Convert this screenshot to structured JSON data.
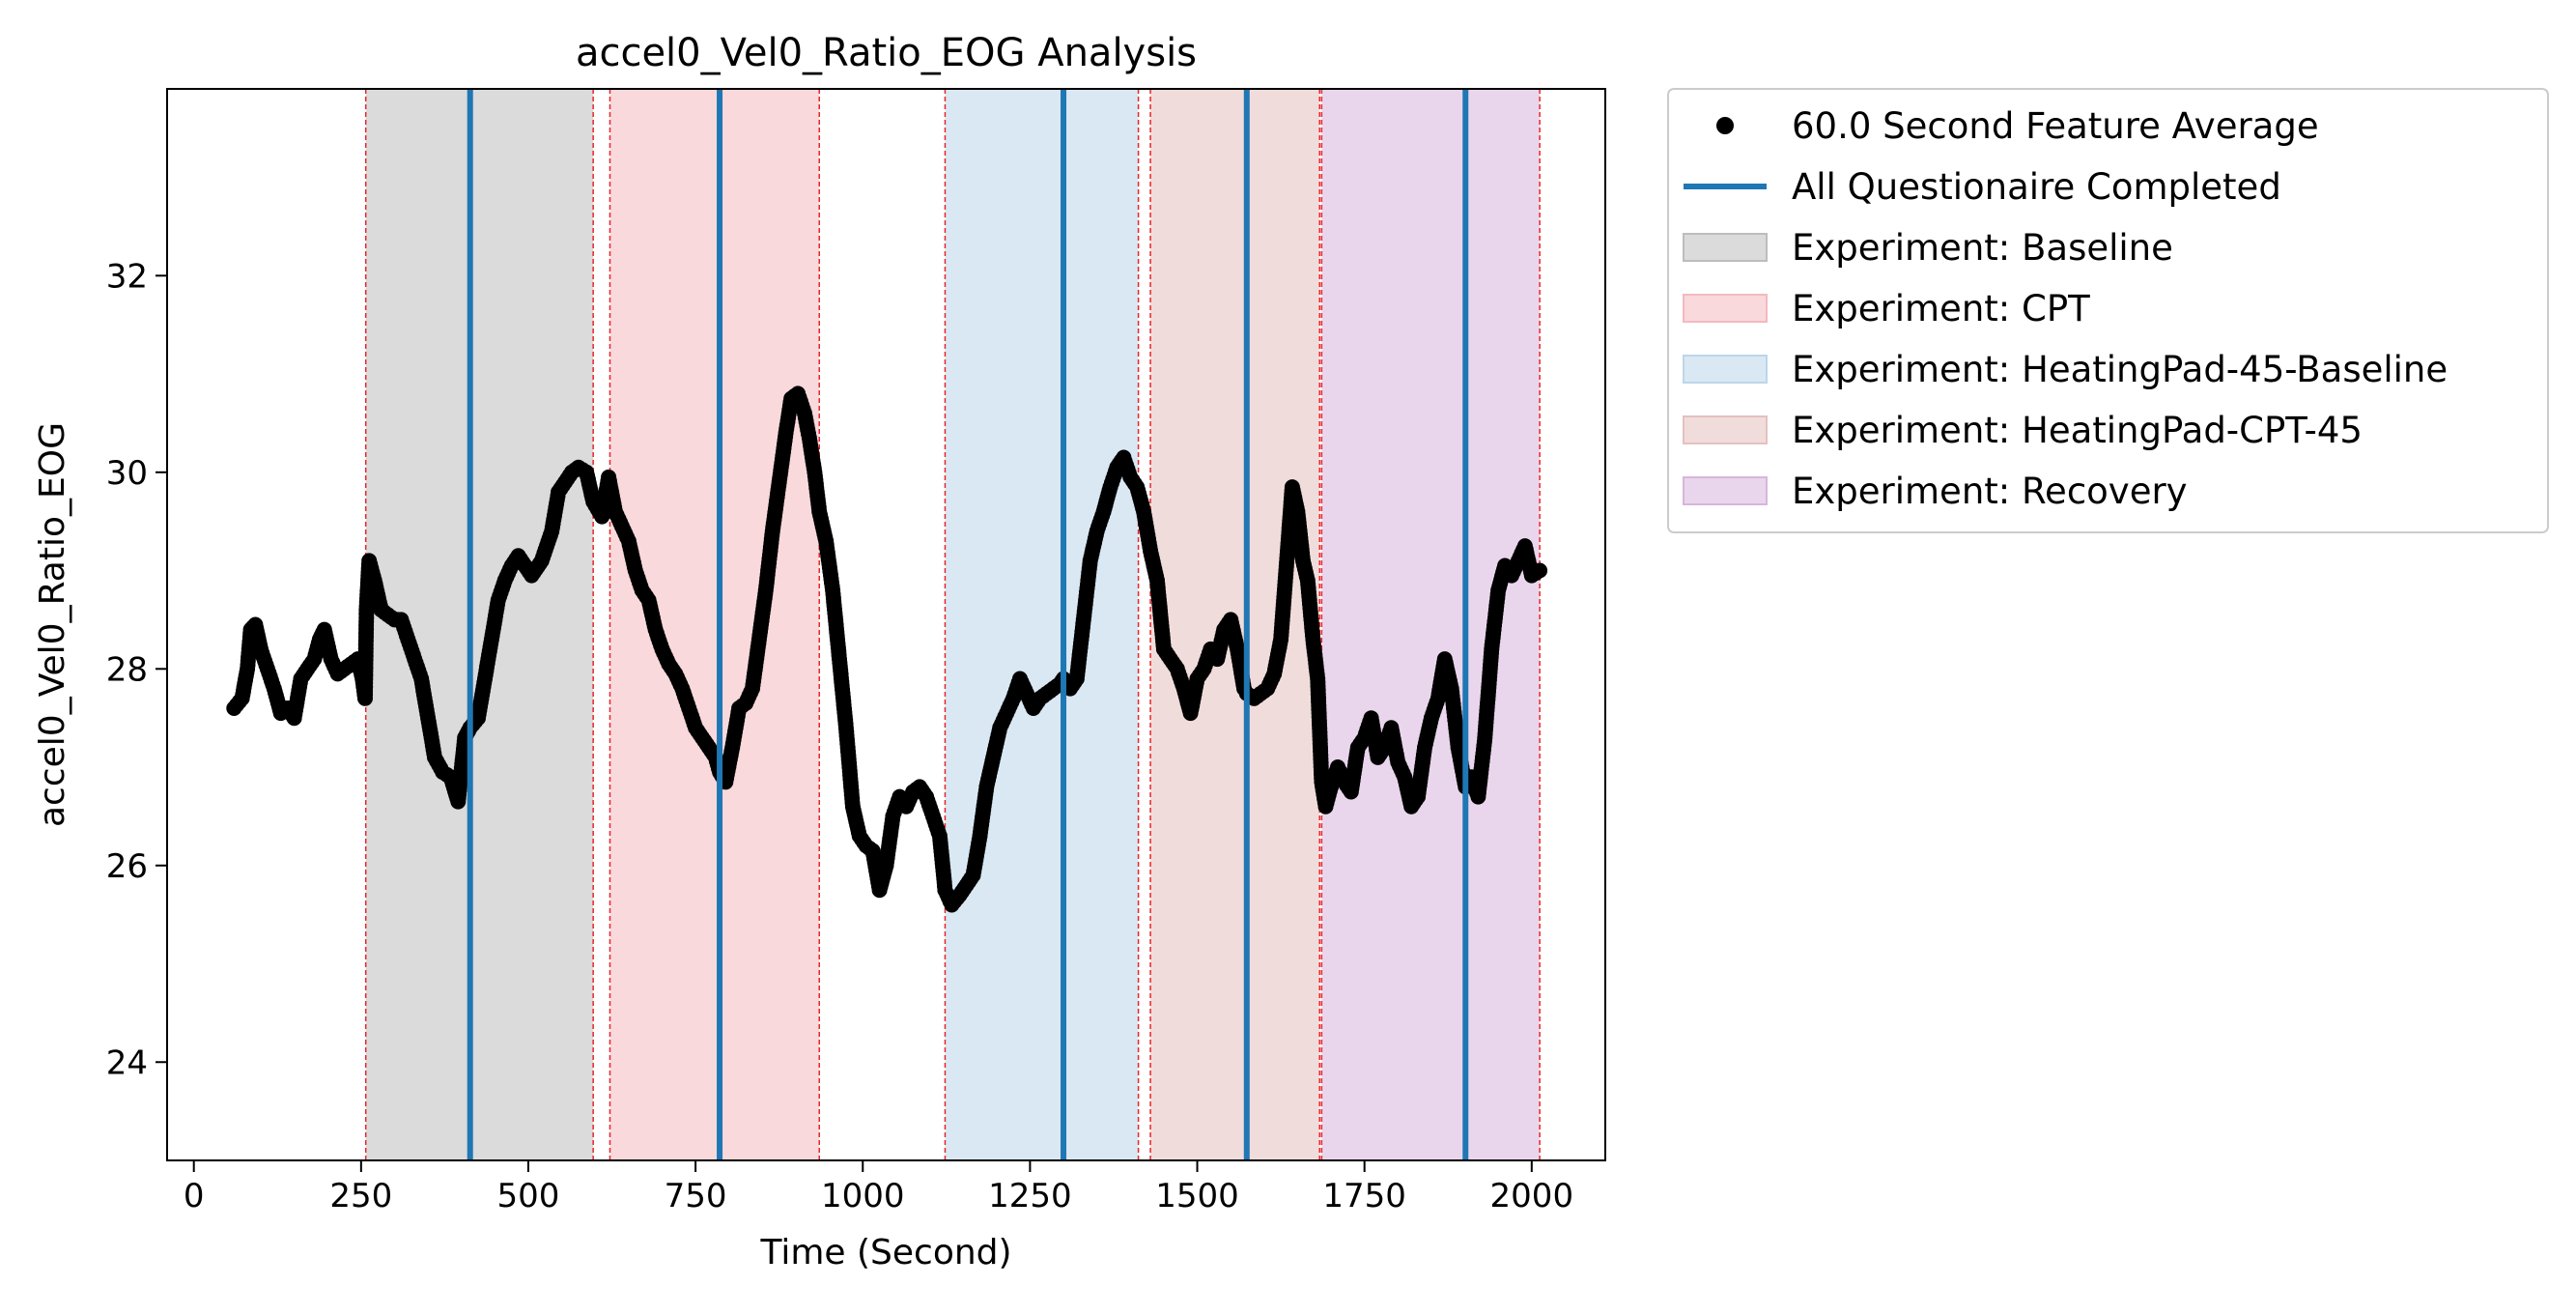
{
  "chart_data": {
    "type": "scatter",
    "title": "accel0_Vel0_Ratio_EOG Analysis",
    "xlabel": "Time (Second)",
    "ylabel": "accel0_Vel0_Ratio_EOG",
    "xlim": [
      -40,
      2110
    ],
    "ylim": [
      23.0,
      33.9
    ],
    "xticks": [
      0,
      250,
      500,
      750,
      1000,
      1250,
      1500,
      1750,
      2000
    ],
    "yticks": [
      24,
      26,
      28,
      30,
      32
    ],
    "grid": false,
    "legend_position": "outside-right-top",
    "legend": [
      {
        "label": "60.0 Second Feature Average",
        "kind": "marker",
        "color": "#000000"
      },
      {
        "label": "All Questionaire Completed",
        "kind": "line",
        "color": "#1f77b4"
      },
      {
        "label": "Experiment: Baseline",
        "kind": "patch",
        "color": "#bdbdbd"
      },
      {
        "label": "Experiment: CPT",
        "kind": "patch",
        "color": "#f4b9c0"
      },
      {
        "label": "Experiment: HeatingPad-45-Baseline",
        "kind": "patch",
        "color": "#bcd6ea"
      },
      {
        "label": "Experiment: HeatingPad-CPT-45",
        "kind": "patch",
        "color": "#e5c0c0"
      },
      {
        "label": "Experiment: Recovery",
        "kind": "patch",
        "color": "#d8b5dc"
      }
    ],
    "experiment_spans": [
      {
        "name": "Baseline",
        "start": 257,
        "end": 597,
        "color": "#bdbdbd"
      },
      {
        "name": "CPT",
        "start": 622,
        "end": 935,
        "color": "#f4b9c0"
      },
      {
        "name": "HeatingPad-45-Baseline",
        "start": 1123,
        "end": 1412,
        "color": "#bcd6ea"
      },
      {
        "name": "HeatingPad-CPT-45",
        "start": 1430,
        "end": 1683,
        "color": "#e5c0c0"
      },
      {
        "name": "Recovery",
        "start": 1686,
        "end": 2012,
        "color": "#d8b5dc"
      }
    ],
    "questionnaire_completed_x": [
      413,
      786,
      1300,
      1574,
      1901
    ],
    "series": [
      {
        "name": "60.0 Second Feature Average",
        "color": "#000000",
        "points": [
          [
            60,
            27.6
          ],
          [
            72,
            27.7
          ],
          [
            80,
            28.0
          ],
          [
            85,
            28.4
          ],
          [
            92,
            28.45
          ],
          [
            100,
            28.2
          ],
          [
            110,
            28.0
          ],
          [
            120,
            27.8
          ],
          [
            130,
            27.55
          ],
          [
            140,
            27.6
          ],
          [
            150,
            27.5
          ],
          [
            160,
            27.9
          ],
          [
            170,
            28.0
          ],
          [
            180,
            28.1
          ],
          [
            188,
            28.3
          ],
          [
            195,
            28.4
          ],
          [
            205,
            28.1
          ],
          [
            215,
            27.95
          ],
          [
            225,
            28.0
          ],
          [
            235,
            28.05
          ],
          [
            245,
            28.1
          ],
          [
            252,
            27.9
          ],
          [
            256,
            27.7
          ],
          [
            258,
            28.6
          ],
          [
            262,
            29.1
          ],
          [
            270,
            28.9
          ],
          [
            280,
            28.6
          ],
          [
            290,
            28.55
          ],
          [
            300,
            28.5
          ],
          [
            310,
            28.5
          ],
          [
            320,
            28.3
          ],
          [
            330,
            28.1
          ],
          [
            340,
            27.9
          ],
          [
            350,
            27.5
          ],
          [
            360,
            27.1
          ],
          [
            372,
            26.95
          ],
          [
            384,
            26.9
          ],
          [
            395,
            26.65
          ],
          [
            405,
            27.3
          ],
          [
            413,
            27.4
          ],
          [
            425,
            27.5
          ],
          [
            435,
            27.9
          ],
          [
            445,
            28.3
          ],
          [
            455,
            28.7
          ],
          [
            465,
            28.9
          ],
          [
            475,
            29.05
          ],
          [
            485,
            29.15
          ],
          [
            495,
            29.05
          ],
          [
            505,
            28.95
          ],
          [
            520,
            29.1
          ],
          [
            535,
            29.4
          ],
          [
            545,
            29.8
          ],
          [
            555,
            29.9
          ],
          [
            565,
            30.0
          ],
          [
            575,
            30.05
          ],
          [
            587,
            30.0
          ],
          [
            597,
            29.7
          ],
          [
            610,
            29.55
          ],
          [
            620,
            29.95
          ],
          [
            630,
            29.6
          ],
          [
            640,
            29.45
          ],
          [
            650,
            29.3
          ],
          [
            660,
            29.0
          ],
          [
            670,
            28.8
          ],
          [
            680,
            28.7
          ],
          [
            690,
            28.4
          ],
          [
            700,
            28.2
          ],
          [
            710,
            28.05
          ],
          [
            720,
            27.95
          ],
          [
            730,
            27.8
          ],
          [
            740,
            27.6
          ],
          [
            750,
            27.4
          ],
          [
            760,
            27.3
          ],
          [
            770,
            27.2
          ],
          [
            780,
            27.1
          ],
          [
            786,
            26.95
          ],
          [
            795,
            26.85
          ],
          [
            805,
            27.2
          ],
          [
            815,
            27.6
          ],
          [
            825,
            27.65
          ],
          [
            835,
            27.8
          ],
          [
            845,
            28.3
          ],
          [
            855,
            28.8
          ],
          [
            865,
            29.4
          ],
          [
            875,
            29.9
          ],
          [
            885,
            30.4
          ],
          [
            893,
            30.75
          ],
          [
            903,
            30.8
          ],
          [
            913,
            30.6
          ],
          [
            920,
            30.35
          ],
          [
            928,
            30.0
          ],
          [
            935,
            29.6
          ],
          [
            945,
            29.3
          ],
          [
            955,
            28.8
          ],
          [
            965,
            28.1
          ],
          [
            975,
            27.4
          ],
          [
            985,
            26.6
          ],
          [
            995,
            26.3
          ],
          [
            1005,
            26.2
          ],
          [
            1015,
            26.15
          ],
          [
            1025,
            25.75
          ],
          [
            1035,
            26.0
          ],
          [
            1045,
            26.5
          ],
          [
            1055,
            26.7
          ],
          [
            1065,
            26.6
          ],
          [
            1075,
            26.75
          ],
          [
            1085,
            26.8
          ],
          [
            1095,
            26.7
          ],
          [
            1105,
            26.5
          ],
          [
            1115,
            26.3
          ],
          [
            1123,
            25.75
          ],
          [
            1133,
            25.6
          ],
          [
            1145,
            25.7
          ],
          [
            1155,
            25.8
          ],
          [
            1165,
            25.9
          ],
          [
            1175,
            26.3
          ],
          [
            1185,
            26.8
          ],
          [
            1195,
            27.1
          ],
          [
            1205,
            27.4
          ],
          [
            1215,
            27.55
          ],
          [
            1225,
            27.7
          ],
          [
            1235,
            27.9
          ],
          [
            1245,
            27.75
          ],
          [
            1255,
            27.6
          ],
          [
            1265,
            27.7
          ],
          [
            1275,
            27.75
          ],
          [
            1285,
            27.8
          ],
          [
            1295,
            27.85
          ],
          [
            1300,
            27.9
          ],
          [
            1310,
            27.8
          ],
          [
            1320,
            27.9
          ],
          [
            1330,
            28.5
          ],
          [
            1340,
            29.1
          ],
          [
            1350,
            29.4
          ],
          [
            1360,
            29.6
          ],
          [
            1370,
            29.85
          ],
          [
            1380,
            30.05
          ],
          [
            1390,
            30.15
          ],
          [
            1400,
            29.95
          ],
          [
            1410,
            29.85
          ],
          [
            1420,
            29.6
          ],
          [
            1430,
            29.2
          ],
          [
            1440,
            28.9
          ],
          [
            1450,
            28.2
          ],
          [
            1460,
            28.1
          ],
          [
            1470,
            28.0
          ],
          [
            1480,
            27.8
          ],
          [
            1490,
            27.55
          ],
          [
            1500,
            27.9
          ],
          [
            1510,
            28.0
          ],
          [
            1520,
            28.2
          ],
          [
            1530,
            28.1
          ],
          [
            1540,
            28.4
          ],
          [
            1550,
            28.5
          ],
          [
            1560,
            28.2
          ],
          [
            1570,
            27.8
          ],
          [
            1574,
            27.75
          ],
          [
            1585,
            27.7
          ],
          [
            1595,
            27.75
          ],
          [
            1605,
            27.8
          ],
          [
            1615,
            27.95
          ],
          [
            1625,
            28.3
          ],
          [
            1635,
            29.2
          ],
          [
            1642,
            29.85
          ],
          [
            1650,
            29.6
          ],
          [
            1658,
            29.1
          ],
          [
            1665,
            28.9
          ],
          [
            1673,
            28.3
          ],
          [
            1680,
            27.9
          ],
          [
            1686,
            26.85
          ],
          [
            1692,
            26.6
          ],
          [
            1700,
            26.8
          ],
          [
            1710,
            27.0
          ],
          [
            1720,
            26.85
          ],
          [
            1730,
            26.75
          ],
          [
            1740,
            27.2
          ],
          [
            1750,
            27.3
          ],
          [
            1760,
            27.5
          ],
          [
            1770,
            27.1
          ],
          [
            1780,
            27.2
          ],
          [
            1790,
            27.4
          ],
          [
            1800,
            27.05
          ],
          [
            1810,
            26.9
          ],
          [
            1820,
            26.6
          ],
          [
            1830,
            26.7
          ],
          [
            1840,
            27.2
          ],
          [
            1850,
            27.5
          ],
          [
            1860,
            27.7
          ],
          [
            1870,
            28.1
          ],
          [
            1880,
            27.8
          ],
          [
            1890,
            27.2
          ],
          [
            1901,
            26.8
          ],
          [
            1910,
            26.9
          ],
          [
            1920,
            26.7
          ],
          [
            1930,
            27.3
          ],
          [
            1940,
            28.2
          ],
          [
            1950,
            28.8
          ],
          [
            1960,
            29.05
          ],
          [
            1970,
            28.95
          ],
          [
            1980,
            29.1
          ],
          [
            1990,
            29.25
          ],
          [
            2000,
            28.95
          ],
          [
            2012,
            29.0
          ]
        ]
      }
    ]
  }
}
